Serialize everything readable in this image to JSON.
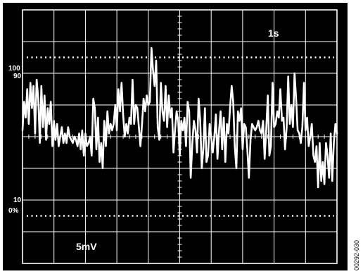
{
  "figure_id": "00292-030",
  "chart_data": {
    "type": "line",
    "title": "",
    "xlabel": "",
    "ylabel": "",
    "timebase_label": "1s",
    "scale_label": "5mV",
    "level_labels": {
      "top_pct": "100",
      "upper_pct": "90",
      "lower_pct": "10",
      "zero_pct": "0%"
    },
    "x_divisions": 10,
    "y_divisions": 8,
    "xlim": [
      0,
      10
    ],
    "ylim": [
      -4,
      4
    ],
    "grid": true,
    "dotted_reference_levels_div": [
      2.5,
      -2.5
    ],
    "colors": {
      "background": "#000000",
      "grid": "#ffffff",
      "trace": "#ffffff",
      "text": "#ffffff"
    },
    "series": [
      {
        "x": [
          0.0,
          0.05,
          0.1,
          0.15,
          0.2,
          0.25,
          0.3,
          0.35,
          0.4,
          0.45,
          0.5,
          0.55,
          0.6,
          0.65,
          0.7,
          0.75,
          0.8,
          0.85,
          0.9,
          0.95,
          1.0,
          1.05,
          1.1,
          1.15,
          1.2,
          1.25,
          1.3,
          1.35,
          1.4,
          1.45,
          1.5,
          1.55,
          1.6,
          1.65,
          1.7,
          1.75,
          1.8,
          1.85,
          1.9,
          1.95,
          2.0,
          2.05,
          2.1,
          2.15,
          2.2,
          2.25,
          2.3,
          2.35,
          2.4,
          2.45,
          2.5,
          2.55,
          2.6,
          2.65,
          2.7,
          2.75,
          2.8,
          2.85,
          2.9,
          2.95,
          3.0,
          3.05,
          3.1,
          3.15,
          3.2,
          3.25,
          3.3,
          3.35,
          3.4,
          3.45,
          3.5,
          3.55,
          3.6,
          3.65,
          3.7,
          3.75,
          3.8,
          3.85,
          3.9,
          3.95,
          4.0,
          4.05,
          4.1,
          4.15,
          4.2,
          4.25,
          4.3,
          4.35,
          4.4,
          4.45,
          4.5,
          4.55,
          4.6,
          4.65,
          4.7,
          4.75,
          4.8,
          4.85,
          4.9,
          4.95,
          5.0,
          5.05,
          5.1,
          5.15,
          5.2,
          5.25,
          5.3,
          5.35,
          5.4,
          5.45,
          5.5,
          5.55,
          5.6,
          5.65,
          5.7,
          5.75,
          5.8,
          5.85,
          5.9,
          5.95,
          6.0,
          6.05,
          6.1,
          6.15,
          6.2,
          6.25,
          6.3,
          6.35,
          6.4,
          6.45,
          6.5,
          6.55,
          6.6,
          6.65,
          6.7,
          6.75,
          6.8,
          6.85,
          6.9,
          6.95,
          7.0,
          7.05,
          7.1,
          7.15,
          7.2,
          7.25,
          7.3,
          7.35,
          7.4,
          7.45,
          7.5,
          7.55,
          7.6,
          7.65,
          7.7,
          7.75,
          7.8,
          7.85,
          7.9,
          7.95,
          8.0,
          8.05,
          8.1,
          8.15,
          8.2,
          8.25,
          8.3,
          8.35,
          8.4,
          8.45,
          8.5,
          8.55,
          8.6,
          8.65,
          8.7,
          8.75,
          8.8,
          8.85,
          8.9,
          8.95,
          9.0,
          9.05,
          9.1,
          9.15,
          9.2,
          9.25,
          9.3,
          9.35,
          9.4,
          9.45,
          9.5,
          9.55,
          9.6,
          9.65,
          9.7,
          9.75,
          9.8,
          9.85,
          9.9,
          9.95,
          10.0
        ],
        "values": [
          0.2,
          1.1,
          0.6,
          1.5,
          0.4,
          1.7,
          0.9,
          1.6,
          0.1,
          1.8,
          1.2,
          -0.2,
          1.6,
          0.3,
          1.3,
          -0.1,
          0.9,
          0.4,
          1.1,
          -0.3,
          0.5,
          -0.1,
          0.4,
          -0.3,
          0.0,
          0.3,
          -0.2,
          0.1,
          -0.2,
          0.3,
          0.0,
          -0.1,
          -0.2,
          0.0,
          -0.1,
          -0.3,
          0.1,
          -0.4,
          0.2,
          -0.6,
          0.1,
          -0.3,
          -0.2,
          0.0,
          -0.6,
          1.2,
          0.9,
          -0.4,
          0.6,
          -0.8,
          -0.2,
          -1.0,
          0.5,
          -0.3,
          0.8,
          0.1,
          0.4,
          0.2,
          0.4,
          1.0,
          0.2,
          1.5,
          0.8,
          1.7,
          0.7,
          0.0,
          0.4,
          0.1,
          0.6,
          0.4,
          1.8,
          0.4,
          1.0,
          0.9,
          0.3,
          -0.3,
          0.4,
          1.2,
          0.8,
          1.3,
          1.0,
          1.1,
          2.8,
          2.1,
          1.6,
          2.4,
          0.3,
          -0.1,
          1.7,
          0.8,
          0.5,
          1.6,
          0.3,
          1.3,
          0.6,
          0.9,
          -0.5,
          0.2,
          0.8,
          0.5,
          -0.6,
          0.5,
          0.2,
          0.6,
          -0.3,
          1.1,
          0.8,
          -1.3,
          -0.2,
          0.5,
          0.2,
          -0.5,
          1.2,
          0.5,
          -1.0,
          -0.4,
          0.9,
          -0.8,
          -0.6,
          0.4,
          0.0,
          -0.5,
          0.0,
          0.7,
          -0.7,
          0.2,
          0.8,
          -0.4,
          0.6,
          -0.8,
          0.4,
          0.1,
          0.9,
          1.6,
          1.1,
          -0.3,
          -1.0,
          0.8,
          0.5,
          0.9,
          -0.4,
          0.4,
          0.3,
          -0.4,
          -1.3,
          -0.1,
          0.4,
          0.3,
          0.2,
          0.3,
          0.5,
          0.2,
          0.1,
          0.5,
          -0.7,
          0.2,
          1.3,
          -0.6,
          -0.3,
          1.7,
          0.3,
          0.4,
          0.8,
          0.6,
          1.5,
          0.5,
          0.6,
          -0.4,
          0.3,
          1.9,
          0.4,
          1.0,
          0.3,
          2.0,
          1.2,
          0.2,
          0.1,
          -0.2,
          0.3,
          1.7,
          0.2,
          0.6,
          -0.3,
          0.0,
          0.4,
          -0.6,
          -0.8,
          -0.3,
          -1.6,
          -0.2,
          -1.4,
          -0.8,
          -1.5,
          -0.2,
          -0.6,
          -1.3,
          0.1,
          -1.4,
          -0.2,
          0.4,
          0.1
        ]
      }
    ]
  }
}
